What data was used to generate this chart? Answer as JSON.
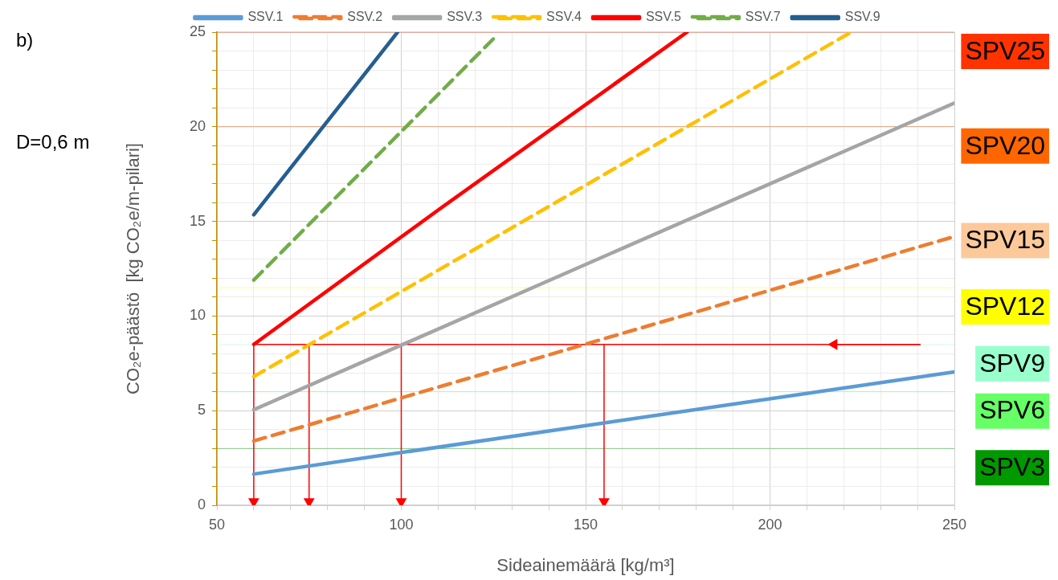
{
  "chart_data": {
    "type": "line",
    "xlabel": "Sideainemäärä [kg/m³]",
    "ylabel": "CO₂e-päästö  [kg CO₂e/m-pilari]",
    "annotations": [
      "b)",
      "D=0,6 m"
    ],
    "xlim": [
      50,
      250
    ],
    "xticks": [
      50,
      {
        "value": 60,
        "label": null
      },
      {
        "value": 70,
        "label": null
      },
      {
        "value": 80,
        "label": null
      },
      {
        "value": 90,
        "label": null
      },
      100,
      {
        "value": 110,
        "label": null
      },
      {
        "value": 120,
        "label": null
      },
      {
        "value": 130,
        "label": null
      },
      {
        "value": 140,
        "label": null
      },
      150,
      {
        "value": 160,
        "label": null
      },
      {
        "value": 170,
        "label": null
      },
      {
        "value": 180,
        "label": null
      },
      {
        "value": 190,
        "label": null
      },
      200,
      {
        "value": 210,
        "label": null
      },
      {
        "value": 220,
        "label": null
      },
      {
        "value": 230,
        "label": null
      },
      {
        "value": 240,
        "label": null
      },
      250
    ],
    "ylim": [
      0,
      25
    ],
    "yticks": [
      0,
      {
        "value": 1,
        "label": null
      },
      {
        "value": 2,
        "label": null
      },
      {
        "value": 3,
        "label": null
      },
      {
        "value": 4,
        "label": null
      },
      5,
      {
        "value": 6,
        "label": null
      },
      {
        "value": 7,
        "label": null
      },
      {
        "value": 8,
        "label": null
      },
      {
        "value": 9,
        "label": null
      },
      10,
      {
        "value": 11,
        "label": null
      },
      {
        "value": 12,
        "label": null
      },
      {
        "value": 13,
        "label": null
      },
      {
        "value": 14,
        "label": null
      },
      15,
      {
        "value": 16,
        "label": null
      },
      {
        "value": 17,
        "label": null
      },
      {
        "value": 18,
        "label": null
      },
      {
        "value": 19,
        "label": null
      },
      20,
      {
        "value": 21,
        "label": null
      },
      {
        "value": 22,
        "label": null
      },
      {
        "value": 23,
        "label": null
      },
      {
        "value": 24,
        "label": null
      },
      25
    ],
    "grid": true,
    "legend": "top",
    "marker": "none",
    "series": [
      {
        "name": "SSV.1",
        "color": "#5b9bd5",
        "line_style": "solid",
        "x": [
          60,
          250
        ],
        "values": [
          1.65,
          7.05
        ]
      },
      {
        "name": "SSV.2",
        "color": "#ed7d31",
        "line_style": "dashed",
        "x": [
          60,
          250
        ],
        "values": [
          3.4,
          14.2
        ]
      },
      {
        "name": "SSV.3",
        "color": "#a5a5a5",
        "line_style": "solid",
        "x": [
          60,
          250
        ],
        "values": [
          5.05,
          21.25
        ]
      },
      {
        "name": "SSV.4",
        "color": "#ffc000",
        "line_style": "dashed",
        "x": [
          60,
          222
        ],
        "values": [
          6.8,
          25
        ]
      },
      {
        "name": "SSV.5",
        "color": "#ff0000",
        "line_style": "solid",
        "x": [
          60,
          110,
          177.5
        ],
        "values": [
          8.5,
          15.6,
          25
        ]
      },
      {
        "name": "SSV.7",
        "color": "#70ad47",
        "line_style": "dashed",
        "x": [
          60,
          125
        ],
        "values": [
          11.9,
          24.65
        ]
      },
      {
        "name": "SSV.9",
        "color": "#255e91",
        "line_style": "solid",
        "x": [
          60,
          99
        ],
        "values": [
          15.35,
          25
        ]
      },
      {
        "color": "#ff0000",
        "line_style": "solid",
        "x": [
          60,
          240.8
        ],
        "values": [
          8.5,
          8.5
        ]
      },
      {
        "color": "#ff0000",
        "line_style": "solid",
        "marker": "triangle",
        "x": [
          240.8,
          217.4
        ],
        "values": [
          8.5,
          8.5
        ]
      },
      {
        "color": "#ff0000",
        "line_style": "solid",
        "marker": "triangle",
        "x": [
          60,
          60
        ],
        "values": [
          8.5,
          0.2
        ]
      },
      {
        "color": "#ff0000",
        "line_style": "solid",
        "marker": "triangle",
        "x": [
          75,
          75
        ],
        "values": [
          8.5,
          0.2
        ]
      },
      {
        "color": "#ff0000",
        "line_style": "solid",
        "marker": "triangle",
        "x": [
          100,
          100
        ],
        "values": [
          8.5,
          0.2
        ]
      },
      {
        "color": "#ff0000",
        "line_style": "solid",
        "marker": "triangle",
        "x": [
          155,
          155
        ],
        "values": [
          8.5,
          0.2
        ]
      }
    ],
    "ref_lines": [
      {
        "axis": "y",
        "value": 25,
        "label": "SPV25",
        "color": "#ff3300"
      },
      {
        "axis": "y",
        "value": 20,
        "label": "SPV20",
        "color": "#ff6600"
      },
      {
        "axis": "y",
        "value": 15,
        "label": "SPV15",
        "color": "#fcc99b"
      },
      {
        "axis": "y",
        "value": 11.5,
        "label": "SPV12",
        "color": "#ffff00"
      },
      {
        "axis": "y",
        "value": 8.5,
        "label": "SPV9",
        "color": "#99ffcc"
      },
      {
        "axis": "y",
        "value": 6,
        "label": "SPV6",
        "color": "#66ff66"
      },
      {
        "axis": "y",
        "value": 3,
        "label": "SPV3",
        "color": "#009900"
      }
    ]
  }
}
